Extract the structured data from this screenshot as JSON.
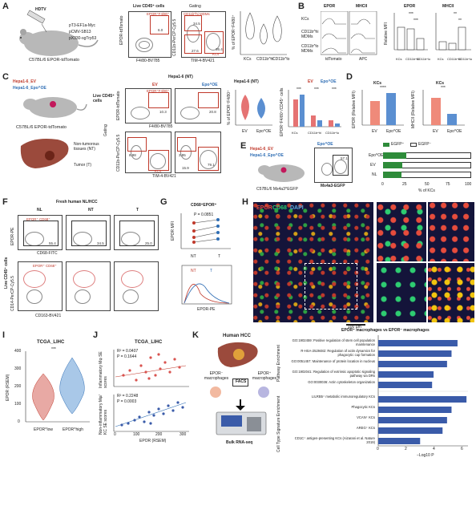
{
  "panels": {
    "A": "A",
    "B": "B",
    "C": "C",
    "D": "D",
    "E": "E",
    "F": "F",
    "G": "G",
    "H": "H",
    "I": "I",
    "J": "J",
    "K": "K"
  },
  "a": {
    "hdtv": "HDTV",
    "plasmids": [
      "pT3-EF1a-Myc",
      "pCMV-SB13",
      "pX330-sgTrp53"
    ],
    "mouse": "C57BL/6 EPOR-tdTomato",
    "live": "Live CD45⁺ cells",
    "gating": "Gating",
    "gate1": "EPOR⁺F4/80⁺",
    "gate2": "CD11b^hi MDMs",
    "gate2b": "CD11b^lo MDMs",
    "kcs": "KCs",
    "n1": "6.0",
    "n2": "34.5",
    "n3": "27.6",
    "n4": "36.4",
    "xa1": "F4/80-BV785",
    "ya1": "EPOR-tdTomato",
    "xa2": "TIM-4-BV421",
    "ya2": "CD11b-PerCP-Cy5.5",
    "violin_y": "% of EPOR⁺F4/80⁺",
    "violin_x": [
      "KCs",
      "CD11b^hi",
      "CD11b^lo"
    ]
  },
  "b": {
    "epor": "EPOR",
    "mhcii": "MHCII",
    "rows": [
      "KCs",
      "CD11b^hi MDMs",
      "CD11b^lo MDMs"
    ],
    "x1": "tdTomato",
    "x2": "APC",
    "t1": "EPOR",
    "t2": "MHCII",
    "ylab": "Relative MFI",
    "sig1": "***",
    "sig2": "***",
    "sig3": "**",
    "sig4": "**",
    "cats": [
      "KCs",
      "CD11b^hi",
      "CD11b^lo"
    ]
  },
  "c": {
    "ev": "Hepa1-6_EV",
    "epo": "Hepa1-6_Epo^OE",
    "mouse": "C57BL/6 EPOR-tdTomato",
    "nt": "Non-tumorous tissues (NT)",
    "tumor": "Tumor (T)",
    "live": "Live CD45⁺ cells",
    "gating": "Gating",
    "hdr": "Hepa1-6 (NT)",
    "col1": "EV",
    "col2": "Epo^OE",
    "gate": "EPOR⁺F4/80⁺",
    "n1": "10.3",
    "n2": "20.8",
    "n3": "8.98",
    "n4": "3.95",
    "n5": "15.9",
    "n6": "79.1",
    "kcs": "KCs",
    "x1": "F4/80-BV785",
    "y1": "EPOR-tdTomato",
    "x2": "TIM-4-BV421",
    "y2": "CD11b-PerCP-Cy5.5",
    "vtitle": "Hepa1-6 (NT)",
    "vlab": "% of EPOR⁺F4/80⁺",
    "vx": [
      "EV",
      "Epo^OE"
    ],
    "dtitle": "EV",
    "dtitle2": "Epo^OE",
    "dy": "EPOR⁺F4/80⁺/CD45⁺ cells",
    "dx": [
      "KCs",
      "CD11b^hi",
      "CD11b^lo"
    ],
    "sig": "***"
  },
  "d": {
    "t1": "KCs",
    "t2": "KCs",
    "y1": "EPOR (Relative MFI)",
    "y2": "MHCII (Relative MFI)",
    "x": [
      "EV",
      "Epo^OE"
    ],
    "s1": "****",
    "s2": "***"
  },
  "e": {
    "ev": "Hepa1-6_EV",
    "epo": "Hepa1-6_Epo^OE",
    "mouse": "C57BL/6 Ms4a3^EGFP",
    "ctrl": "Epo^OE",
    "val": "57.1",
    "xa": "Ms4a3-EGFP",
    "leg1": "EGFP⁺",
    "leg2": "EGFP⁻",
    "rows": [
      "Epo^OE",
      "EV",
      "NL"
    ],
    "xl": "% of KCs",
    "ticks": [
      "0",
      "25",
      "50",
      "75",
      "100"
    ],
    "pct": [
      26,
      22,
      21
    ]
  },
  "f": {
    "title": "Fresh human NL/HCC",
    "cols": [
      "NL",
      "NT",
      "T"
    ],
    "gate1": "EPOR⁺ CD68⁺",
    "gate2": "EPOR⁺ CD68⁺",
    "v1": [
      "55.4",
      "34.5",
      "25.0"
    ],
    "yl1": "EPOR-PE",
    "xl1": "CD68-FITC",
    "yl2": "CD14-PerCP-Cy5.5",
    "xl2": "CD163-BV421",
    "live": "Live CD45⁺ cells"
  },
  "g": {
    "title": "CD68⁺EPOR⁺",
    "p": "P = 0.0851",
    "y": "EPOR MFI",
    "x": [
      "NT",
      "T"
    ],
    "hx": "EPOR-PE",
    "nt": "NT",
    "t": "T"
  },
  "h": {
    "epor": "EPOR",
    "cd68": "CD68",
    "dapi": "DAPI",
    "scale": "100 µm"
  },
  "i": {
    "title": "TCGA_LIHC",
    "y": "EPOR (RSEM)",
    "x": [
      "EPOR^low",
      "EPOR^high"
    ],
    "sig": "***",
    "ticks": [
      "400",
      "300",
      "200",
      "100",
      "0"
    ]
  },
  "j": {
    "title": "TCGA_LIHC",
    "r1": "R² = 0.0407",
    "p1": "P = 0.1644",
    "r2": "R² = 0.2248",
    "p2": "P = 0.0003",
    "y1": "Inflammatory Mφ SE scores",
    "y2": "Non-inflammatory Mφ/ KC SE scores",
    "x": "EPOR (RSEM)",
    "xticks": [
      "0",
      "100",
      "200",
      "300"
    ]
  },
  "k": {
    "title": "Human HCC",
    "neg": "EPOR⁻ macrophages",
    "pos": "EPOR⁺ macrophages",
    "facs": "FACS",
    "seq": "Bulk RNA-seq",
    "chart_title": "EPOR⁺ macrophages vs EPOR⁻ macrophages",
    "sec1": "Pathway Enrichment",
    "sec2": "Cell Type Signature Enrichment",
    "xl": "−Log10 P",
    "xticks": [
      "0",
      "2",
      "4",
      "6"
    ]
  },
  "chart_data": [
    {
      "type": "bar",
      "title": "EPOR⁺ macrophages vs EPOR⁻ macrophages",
      "xlabel": "−Log10 P",
      "ylabel": "Pathway Enrichment",
      "xlim": [
        0,
        6
      ],
      "categories": [
        "GO:1902459: Positive regulation of stem cell population maintenance",
        "R-HSA-2529482: Regulation of actin dynamics for phagocytic cup formation",
        "GO:0051457: Maintenance of protein location in nucleus",
        "GO:1902041: Regulation of extrinsic apoptotic signaling pathway via DRs",
        "GO:0030036: Actin cytoskeleton organization"
      ],
      "values": [
        5.3,
        4.9,
        4.6,
        3.7,
        3.6
      ]
    },
    {
      "type": "bar",
      "title": "",
      "xlabel": "−Log10 P",
      "ylabel": "Cell Type Signature Enrichment",
      "xlim": [
        0,
        6
      ],
      "categories": [
        "LILRB5⁺ metabolic immunoregulatory KCs",
        "Phagocytic KCs",
        "VCAN⁺ KCs",
        "AREG⁺ KCs",
        "CD1C⁺ antigen-presenting KCs (Aizarani et al. Nature 2019)"
      ],
      "values": [
        5.9,
        4.9,
        4.6,
        4.3,
        2.8
      ]
    }
  ]
}
